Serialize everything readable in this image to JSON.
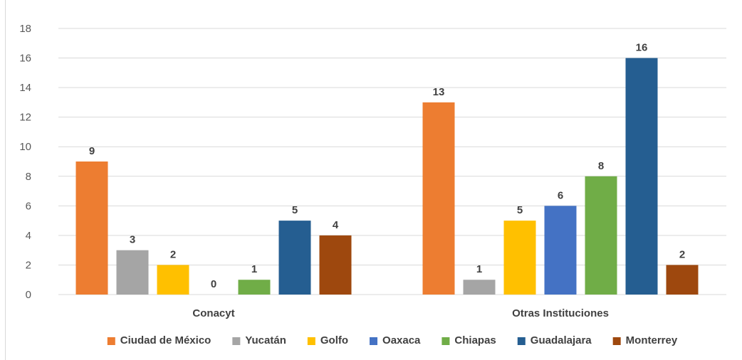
{
  "chart_data": {
    "type": "bar",
    "categories": [
      "Conacyt",
      "Otras Instituciones"
    ],
    "series": [
      {
        "name": "Ciudad de México",
        "color": "#ED7D31",
        "values": [
          9,
          13
        ]
      },
      {
        "name": "Yucatán",
        "color": "#A5A5A5",
        "values": [
          3,
          1
        ]
      },
      {
        "name": "Golfo",
        "color": "#FFC000",
        "values": [
          2,
          5
        ]
      },
      {
        "name": "Oaxaca",
        "color": "#4472C4",
        "values": [
          0,
          6
        ]
      },
      {
        "name": "Chiapas",
        "color": "#70AD47",
        "values": [
          1,
          8
        ]
      },
      {
        "name": "Guadalajara",
        "color": "#255E91",
        "values": [
          5,
          16
        ]
      },
      {
        "name": "Monterrey",
        "color": "#9E480E",
        "values": [
          4,
          2
        ]
      }
    ],
    "ylim": [
      0,
      18
    ],
    "yticks": [
      0,
      2,
      4,
      6,
      8,
      10,
      12,
      14,
      16,
      18
    ],
    "grid": true,
    "legend": "bottom",
    "data_labels": true
  }
}
